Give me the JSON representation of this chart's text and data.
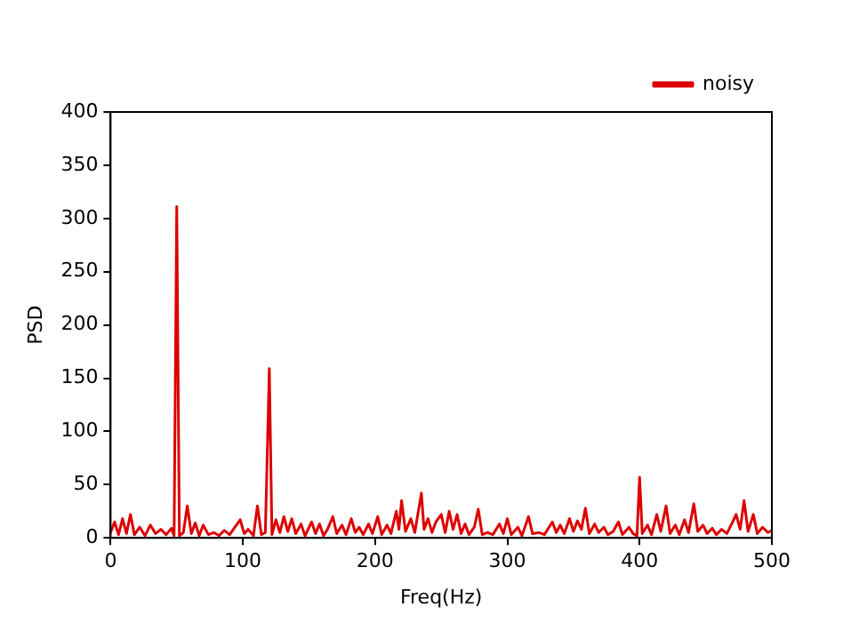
{
  "chart_data": {
    "type": "line",
    "xlabel": "Freq(Hz)",
    "ylabel": "PSD",
    "xlim": [
      0,
      500
    ],
    "xticks": [
      0,
      100,
      200,
      300,
      400,
      500
    ],
    "ylim": [
      0,
      400
    ],
    "yticks": [
      0,
      50,
      100,
      150,
      200,
      250,
      300,
      350,
      400
    ],
    "grid": false,
    "legend": "top right",
    "marker": "none",
    "line_style": "solid",
    "series": [
      {
        "name": "noisy",
        "color": "#dd0000",
        "x": [
          0,
          3,
          6,
          9,
          12,
          15,
          18,
          22,
          26,
          30,
          34,
          38,
          42,
          46,
          48,
          50,
          52,
          55,
          58,
          61,
          64,
          67,
          70,
          74,
          78,
          82,
          86,
          90,
          94,
          98,
          101,
          104,
          108,
          111,
          114,
          117,
          120,
          122,
          125,
          128,
          131,
          134,
          137,
          140,
          144,
          147,
          152,
          155,
          158,
          161,
          164,
          168,
          171,
          175,
          178,
          182,
          185,
          188,
          191,
          195,
          198,
          202,
          205,
          209,
          212,
          216,
          218,
          220,
          223,
          227,
          230,
          235,
          237,
          240,
          243,
          246,
          250,
          253,
          256,
          259,
          262,
          265,
          268,
          271,
          275,
          278,
          281,
          285,
          289,
          294,
          297,
          300,
          303,
          308,
          311,
          316,
          319,
          324,
          328,
          334,
          337,
          340,
          343,
          347,
          350,
          353,
          356,
          359,
          362,
          366,
          369,
          373,
          376,
          380,
          384,
          387,
          392,
          395,
          398,
          400,
          402,
          406,
          409,
          413,
          416,
          420,
          423,
          427,
          430,
          434,
          437,
          441,
          444,
          448,
          451,
          455,
          458,
          462,
          466,
          470,
          473,
          476,
          479,
          482,
          486,
          489,
          493,
          497,
          500
        ],
        "values": [
          5,
          15,
          3,
          18,
          4,
          22,
          3,
          10,
          2,
          12,
          4,
          8,
          3,
          9,
          2,
          311,
          2,
          5,
          30,
          4,
          14,
          2,
          12,
          3,
          5,
          2,
          7,
          3,
          10,
          17,
          4,
          8,
          2,
          30,
          3,
          5,
          159,
          3,
          17,
          5,
          20,
          6,
          18,
          4,
          13,
          2,
          15,
          4,
          13,
          2,
          8,
          20,
          4,
          12,
          3,
          18,
          5,
          10,
          3,
          13,
          4,
          20,
          3,
          12,
          4,
          25,
          8,
          35,
          6,
          18,
          5,
          42,
          8,
          18,
          5,
          15,
          22,
          5,
          25,
          8,
          22,
          4,
          13,
          3,
          10,
          27,
          3,
          5,
          3,
          13,
          4,
          18,
          3,
          10,
          2,
          20,
          4,
          5,
          3,
          15,
          5,
          12,
          4,
          18,
          6,
          16,
          8,
          28,
          4,
          13,
          5,
          10,
          3,
          6,
          15,
          3,
          10,
          4,
          2,
          57,
          4,
          12,
          3,
          22,
          6,
          30,
          4,
          12,
          3,
          17,
          5,
          32,
          6,
          12,
          4,
          9,
          3,
          8,
          4,
          14,
          22,
          8,
          35,
          6,
          22,
          4,
          10,
          5,
          7
        ]
      }
    ]
  }
}
